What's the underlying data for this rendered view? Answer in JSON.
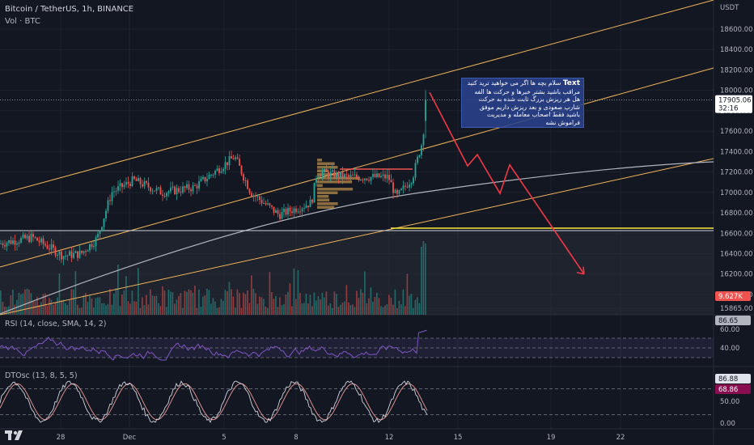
{
  "header": {
    "title": "Bitcoin / TetherUS, 1h, BINANCE",
    "volume_label": "Vol · BTC"
  },
  "note": {
    "prefix": "Text",
    "text": "سلام بچه ها اگر می خواهید ترید کنید مراقب باشید بشتر خبرها و حرکت ها الفه هل هر ریزش بزرگ ثابت شده به حرکت شارپ صعودی و بعد ریزش داریم موفق باشید فقط اصحاب معامله و مدیریت فراموش نشه"
  },
  "price_axis": {
    "currency": "USDT",
    "ticks": [
      "18600.00",
      "18400.00",
      "18200.00",
      "18000.00",
      "17800.00",
      "17600.00",
      "17400.00",
      "17200.00",
      "17000.00",
      "16800.00",
      "16600.00",
      "16400.00",
      "16200.00",
      "16000.00",
      "15865.00"
    ],
    "last_price": "17905.06",
    "countdown": "32:16",
    "volume_tag": "9.627K"
  },
  "time_axis": {
    "ticks": [
      "28",
      "Dec",
      "5",
      "8",
      "12",
      "15",
      "19",
      "22"
    ]
  },
  "rsi": {
    "label": "RSI (14, close, SMA, 14, 2)",
    "value": "86.65",
    "axis": [
      "60.00",
      "40.00"
    ]
  },
  "dtosc": {
    "label": "DTOsc (13, 8, 5, 5)",
    "value1": "86.88",
    "value2": "68.86",
    "axis": [
      "50.00",
      "0.00"
    ]
  },
  "colors": {
    "background": "#131722",
    "up": "#26a69a",
    "down": "#ef5350",
    "channel": "#f0b45a",
    "projection": "#f23645",
    "support": "#ffeb3b",
    "rsi": "#7e57c2",
    "note_bg": "#29428c"
  },
  "chart_data": {
    "type": "candlestick",
    "symbol": "BTCUSDT",
    "interval": "1h",
    "x_ticks": [
      "28",
      "Dec",
      "5",
      "8",
      "12",
      "15",
      "19",
      "22"
    ],
    "y_range": [
      15865,
      18700
    ],
    "last_price": 17905.06,
    "support_level": 16610,
    "key_closes": [
      {
        "time": "27 Nov",
        "price": 16500
      },
      {
        "time": "28 Nov",
        "price": 16350
      },
      {
        "time": "29 Nov",
        "price": 16450
      },
      {
        "time": "30 Nov",
        "price": 17050
      },
      {
        "time": "1 Dec",
        "price": 17100
      },
      {
        "time": "3 Dec",
        "price": 17050
      },
      {
        "time": "5 Dec",
        "price": 17350
      },
      {
        "time": "6 Dec",
        "price": 16950
      },
      {
        "time": "7 Dec",
        "price": 16800
      },
      {
        "time": "9 Dec",
        "price": 17150
      },
      {
        "time": "11 Dec",
        "price": 17100
      },
      {
        "time": "12 Dec",
        "price": 16950
      },
      {
        "time": "13 Dec",
        "price": 17905
      }
    ],
    "projected_path": [
      17980,
      17260,
      17370,
      16990,
      17270,
      16200
    ],
    "rsi_last": 86.65,
    "dtosc_last": [
      86.88,
      68.86
    ]
  }
}
